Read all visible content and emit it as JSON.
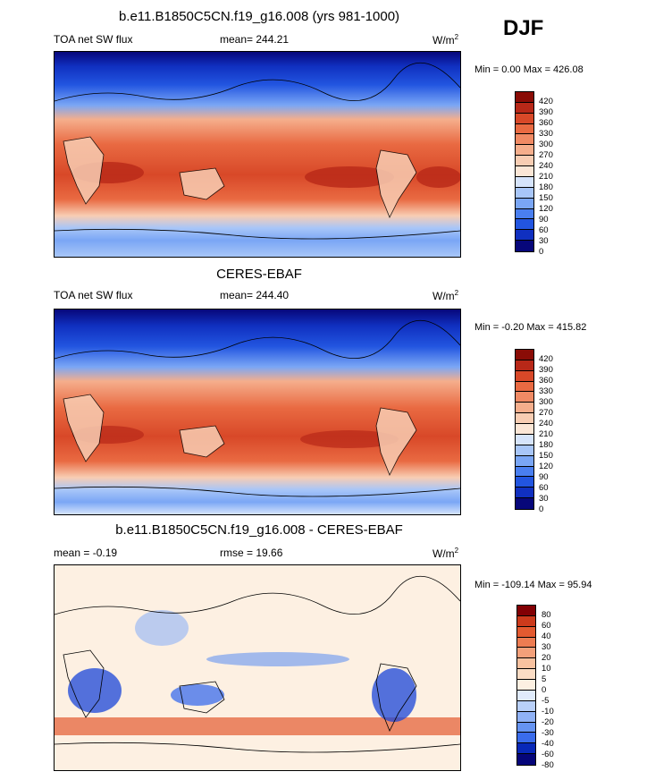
{
  "season": "DJF",
  "colors": {
    "p1": [
      "#07077a",
      "#1030c0",
      "#2255e0",
      "#4a7ff0",
      "#7aa6f5",
      "#a8c6f8",
      "#d6e4fb",
      "#fbe6d6",
      "#f8cdb3",
      "#f5ae8c",
      "#f08a64",
      "#e96a42",
      "#d84828",
      "#b82818",
      "#8a0c06"
    ],
    "p3": [
      "#05057a",
      "#0828b8",
      "#1a45d8",
      "#3a6cec",
      "#6694f2",
      "#90b2f6",
      "#b9d0f9",
      "#e0ebfc",
      "#fdf0e2",
      "#fbdcc4",
      "#f8c2a0",
      "#f3a07a",
      "#ed7c52",
      "#e35a30",
      "#cc3a1c",
      "#a81a0a",
      "#820004"
    ]
  },
  "panels": [
    {
      "title": "b.e11.B1850C5CN.f19_g16.008 (yrs 981-1000)",
      "left": "TOA net SW flux",
      "mean": "mean= 244.21",
      "units_base": "W/m",
      "units_exp": "2",
      "minmax": "Min =   0.00 Max = 426.08"
    },
    {
      "title": "CERES-EBAF",
      "left": "TOA net SW flux",
      "mean": "mean= 244.40",
      "units_base": "W/m",
      "units_exp": "2",
      "minmax": "Min =  -0.20 Max = 415.82"
    },
    {
      "title": "b.e11.B1850C5CN.f19_g16.008 - CERES-EBAF",
      "left": "mean =  -0.19",
      "mean": "rmse =  19.66",
      "units_base": "W/m",
      "units_exp": "2",
      "minmax": "Min = -109.14 Max =  95.94"
    }
  ],
  "chart_data": [
    {
      "type": "heatmap",
      "title": "b.e11.B1850C5CN.f19_g16.008 (yrs 981-1000)",
      "variable": "TOA net SW flux",
      "units": "W/m2",
      "mean": 244.21,
      "min": 0.0,
      "max": 426.08,
      "levels": [
        0,
        30,
        60,
        90,
        120,
        150,
        180,
        210,
        240,
        270,
        300,
        330,
        360,
        390,
        420
      ]
    },
    {
      "type": "heatmap",
      "title": "CERES-EBAF",
      "variable": "TOA net SW flux",
      "units": "W/m2",
      "mean": 244.4,
      "min": -0.2,
      "max": 415.82,
      "levels": [
        0,
        30,
        60,
        90,
        120,
        150,
        180,
        210,
        240,
        270,
        300,
        330,
        360,
        390,
        420
      ]
    },
    {
      "type": "heatmap",
      "title": "b.e11.B1850C5CN.f19_g16.008 - CERES-EBAF",
      "units": "W/m2",
      "mean": -0.19,
      "rmse": 19.66,
      "min": -109.14,
      "max": 95.94,
      "levels": [
        -80,
        -60,
        -40,
        -30,
        -20,
        -10,
        -5,
        0,
        5,
        10,
        20,
        30,
        40,
        60,
        80
      ]
    }
  ]
}
